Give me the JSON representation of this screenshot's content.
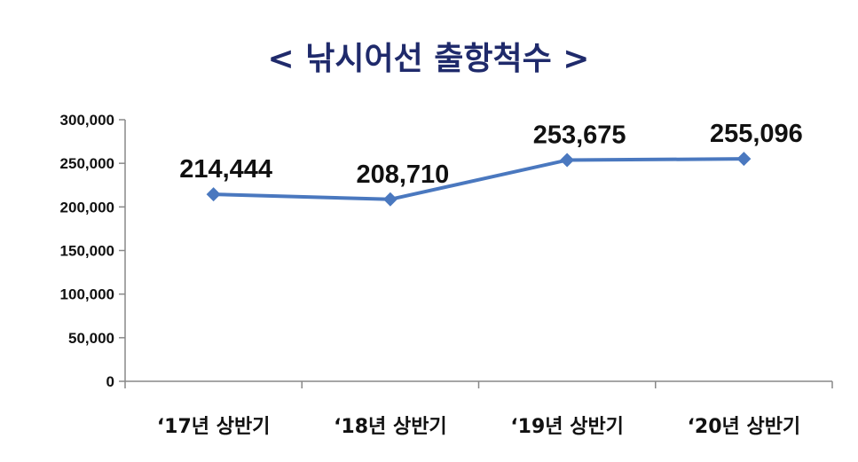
{
  "chart_data": {
    "type": "line",
    "title": "< 낚시어선 출항척수 >",
    "categories": [
      "‘17년 상반기",
      "‘18년 상반기",
      "‘19년 상반기",
      "‘20년 상반기"
    ],
    "series": [
      {
        "values": [
          214444,
          208710,
          253675,
          255096
        ]
      }
    ],
    "data_labels": [
      "214,444",
      "208,710",
      "253,675",
      "255,096"
    ],
    "y_ticks": [
      {
        "value": 0,
        "label": "0"
      },
      {
        "value": 50000,
        "label": "50,000"
      },
      {
        "value": 100000,
        "label": "100,000"
      },
      {
        "value": 150000,
        "label": "150,000"
      },
      {
        "value": 200000,
        "label": "200,000"
      },
      {
        "value": 250000,
        "label": "250,000"
      },
      {
        "value": 300000,
        "label": "300,000"
      }
    ],
    "ylim": [
      0,
      300000
    ],
    "grid": false,
    "legend": "none",
    "line_color": "#4a78bf",
    "title_color": "#1f2a6b"
  }
}
